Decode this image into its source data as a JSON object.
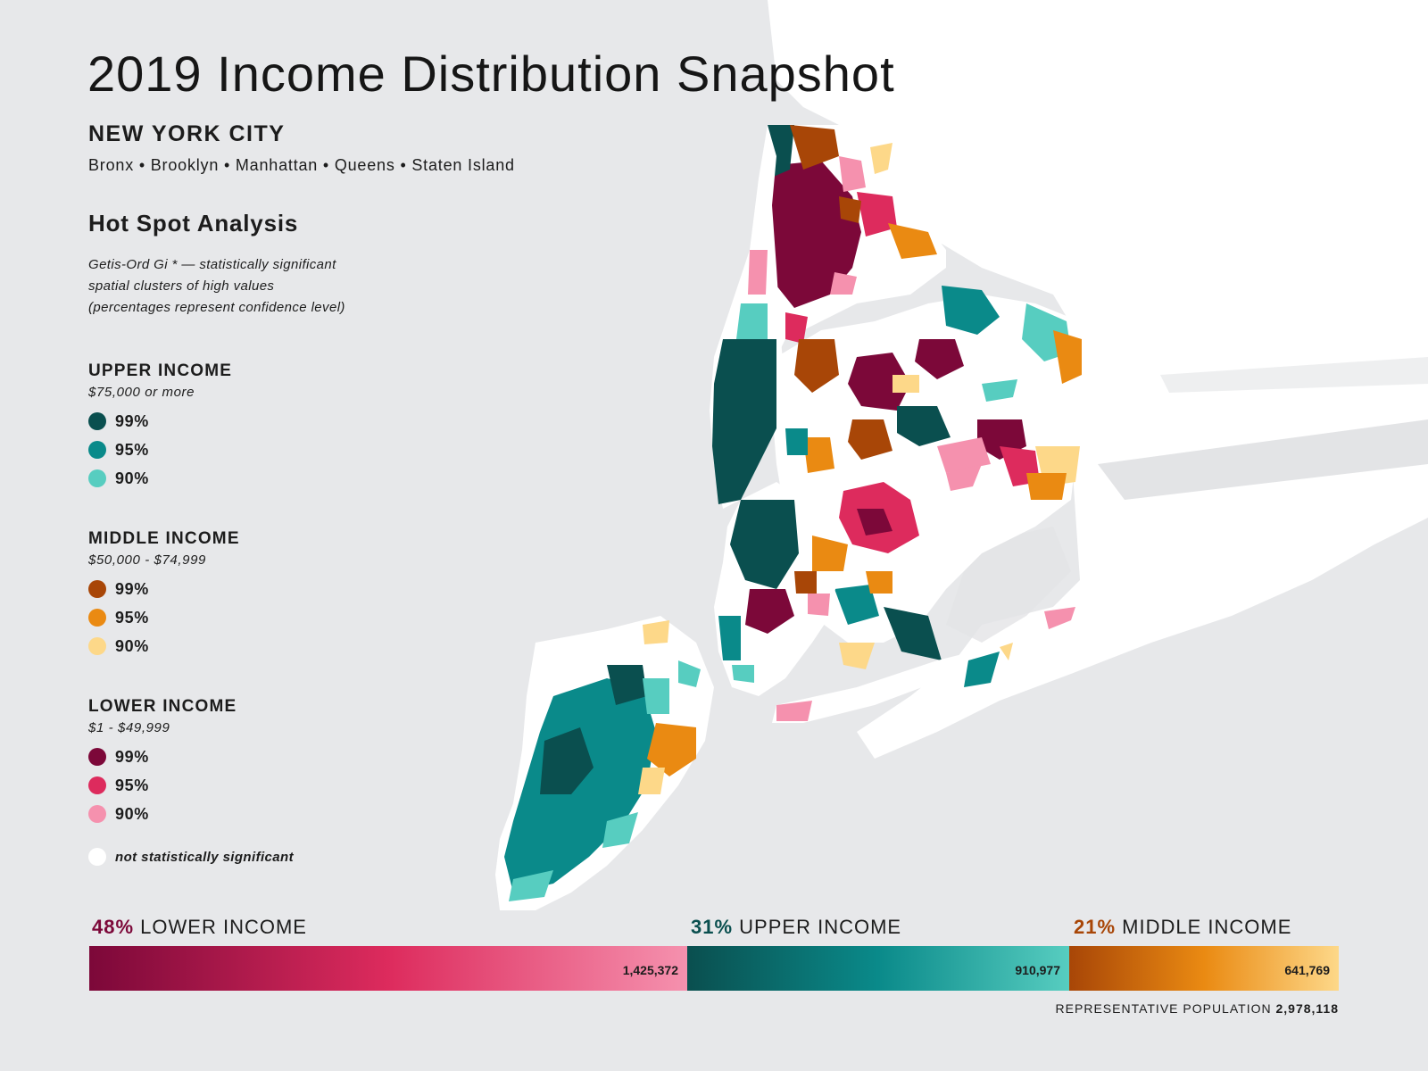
{
  "title": "2019 Income Distribution Snapshot",
  "subtitle": "NEW YORK CITY",
  "boroughs": "Bronx • Brooklyn • Manhattan • Queens • Staten Island",
  "analysis": {
    "title": "Hot Spot Analysis",
    "desc": [
      "Getis-Ord Gi * — statistically significant",
      "spatial clusters of high values",
      "(percentages represent confidence level)"
    ]
  },
  "legend": {
    "upper": {
      "title": "UPPER INCOME",
      "range": "$75,000 or more",
      "levels": [
        {
          "label": "99%",
          "color": "#0a4f4f"
        },
        {
          "label": "95%",
          "color": "#0a8a8a"
        },
        {
          "label": "90%",
          "color": "#57cdc0"
        }
      ]
    },
    "middle": {
      "title": "MIDDLE INCOME",
      "range": "$50,000 - $74,999",
      "levels": [
        {
          "label": "99%",
          "color": "#a84607"
        },
        {
          "label": "95%",
          "color": "#ea8a12"
        },
        {
          "label": "90%",
          "color": "#fdd889"
        }
      ]
    },
    "lower": {
      "title": "LOWER INCOME",
      "range": "$1 - $49,999",
      "levels": [
        {
          "label": "99%",
          "color": "#7c0839"
        },
        {
          "label": "95%",
          "color": "#dd2b5d"
        },
        {
          "label": "90%",
          "color": "#f591ae"
        }
      ]
    },
    "not_significant": "not statistically significant"
  },
  "summary": {
    "lower": {
      "pct": "48%",
      "label": "LOWER INCOME",
      "count": "1,425,372",
      "population": 1425372
    },
    "upper": {
      "pct": "31%",
      "label": "UPPER INCOME",
      "count": "910,977",
      "population": 910977
    },
    "middle": {
      "pct": "21%",
      "label": "MIDDLE INCOME",
      "count": "641,769",
      "population": 641769
    },
    "total_label": "REPRESENTATIVE POPULATION",
    "total": "2,978,118"
  },
  "colors": {
    "lower_pct": "#7c0839",
    "upper_pct": "#0a4f4f",
    "middle_pct": "#a84607",
    "background": "#e7e8ea",
    "land": "#ffffff"
  }
}
